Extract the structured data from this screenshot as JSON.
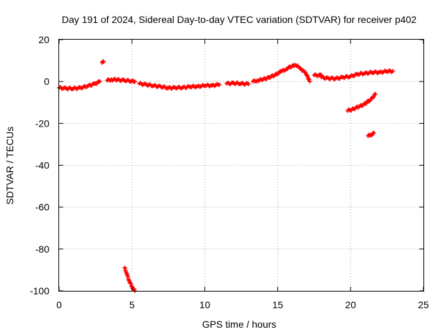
{
  "chart_data": {
    "type": "scatter",
    "title": "Day 191 of 2024, Sidereal Day-to-day VTEC variation (SDTVAR) for receiver p402",
    "xlabel": "GPS time / hours",
    "ylabel": "SDTVAR / TECUs",
    "xlim": [
      0,
      25
    ],
    "ylim": [
      -100,
      20
    ],
    "xticks": [
      0,
      5,
      10,
      15,
      20,
      25
    ],
    "yticks": [
      20,
      0,
      -20,
      -40,
      -60,
      -80,
      -100
    ],
    "xtick_labels": [
      "0",
      "5",
      "10",
      "15",
      "20",
      "25"
    ],
    "ytick_labels": [
      "20",
      "0",
      "-20",
      "-40",
      "-60",
      "-80",
      "-100"
    ],
    "grid": true,
    "marker": "+",
    "color": "#ff0000",
    "series": [
      {
        "name": "p402",
        "segments": [
          {
            "x": [
              0.0,
              0.5,
              1.0,
              1.5,
              2.0,
              2.5,
              2.8
            ],
            "y": [
              -3,
              -3.3,
              -3.3,
              -3,
              -2,
              -1,
              0
            ]
          },
          {
            "x": [
              2.95,
              3.05
            ],
            "y": [
              9,
              9.4
            ]
          },
          {
            "x": [
              3.3,
              3.6,
              4.0,
              4.5,
              5.0,
              5.2
            ],
            "y": [
              0.5,
              1,
              0.8,
              0.5,
              0.2,
              0
            ]
          },
          {
            "x": [
              4.5,
              4.6,
              4.7,
              4.8,
              4.9,
              5.0,
              5.1,
              5.2
            ],
            "y": [
              -89,
              -91,
              -93,
              -95,
              -96.5,
              -98,
              -99,
              -100
            ]
          },
          {
            "x": [
              5.5,
              6.0,
              6.5,
              7.0,
              7.5,
              8.0,
              8.5,
              9.0,
              9.5,
              10.0,
              10.5,
              11.0
            ],
            "y": [
              -1,
              -1.5,
              -2,
              -2.5,
              -3,
              -3,
              -2.8,
              -2.5,
              -2.3,
              -2,
              -1.8,
              -1.5
            ]
          },
          {
            "x": [
              11.5,
              12.0,
              12.5,
              13.0
            ],
            "y": [
              -1,
              -0.8,
              -1,
              -1.2
            ]
          },
          {
            "x": [
              13.3,
              13.6,
              14.0,
              14.4,
              14.8,
              15.0,
              15.3,
              15.6,
              16.0,
              16.2,
              16.5,
              16.8,
              17.0,
              17.2
            ],
            "y": [
              0,
              0.5,
              1,
              2,
              3,
              4,
              5,
              6,
              7.5,
              8,
              6.5,
              5,
              3,
              0
            ]
          },
          {
            "x": [
              17.5,
              18.0
            ],
            "y": [
              3,
              3
            ]
          },
          {
            "x": [
              18.0,
              18.5,
              19.0,
              19.5,
              20.0,
              20.5,
              21.0,
              21.5,
              22.0,
              22.5,
              22.9
            ],
            "y": [
              2,
              1.5,
              1.5,
              2,
              2.5,
              3.5,
              4,
              4.3,
              4.5,
              4.8,
              5
            ]
          },
          {
            "x": [
              19.8,
              20.2,
              20.6,
              21.0,
              21.4,
              21.7
            ],
            "y": [
              -14,
              -13,
              -12,
              -10.5,
              -8.5,
              -6
            ]
          },
          {
            "x": [
              21.2,
              21.4,
              21.6
            ],
            "y": [
              -26,
              -25.5,
              -24.5
            ]
          }
        ]
      }
    ]
  }
}
